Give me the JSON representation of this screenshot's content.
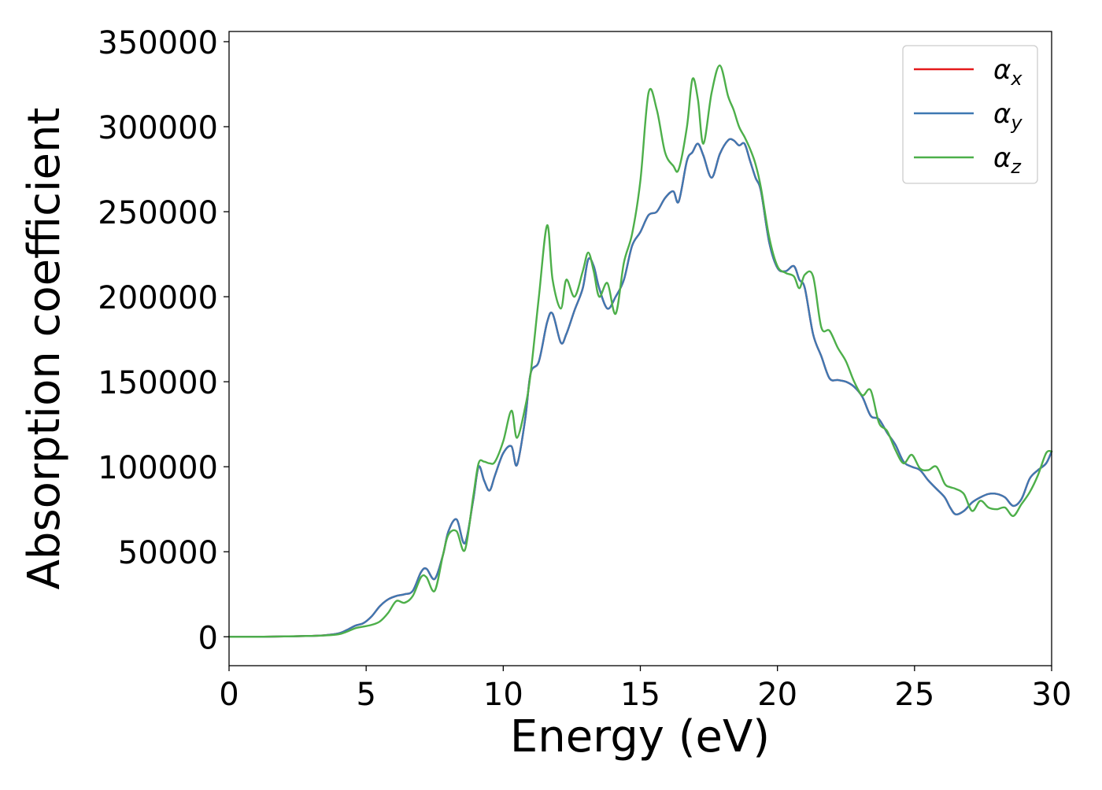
{
  "chart_data": {
    "type": "line",
    "xlabel": "Energy (eV)",
    "ylabel": "Absorption coefficient",
    "xlim": [
      0,
      30
    ],
    "ylim": [
      -17000,
      356000
    ],
    "x_ticks": [
      0,
      5,
      10,
      15,
      20,
      25,
      30
    ],
    "y_ticks": [
      0,
      50000,
      100000,
      150000,
      200000,
      250000,
      300000,
      350000
    ],
    "x_tick_labels": [
      "0",
      "5",
      "10",
      "15",
      "20",
      "25",
      "30"
    ],
    "y_tick_labels": [
      "0",
      "50000",
      "100000",
      "150000",
      "200000",
      "250000",
      "300000",
      "350000"
    ],
    "grid": false,
    "legend_position": "top-right",
    "series": [
      {
        "name": "αx",
        "legend_base": "α",
        "legend_sub": "x",
        "color": "#e41a1c",
        "x": [
          0,
          1,
          2,
          3,
          3.5,
          4,
          4.3,
          4.6,
          4.9,
          5.2,
          5.5,
          5.8,
          6.1,
          6.4,
          6.7,
          7.0,
          7.2,
          7.5,
          7.8,
          8.0,
          8.3,
          8.6,
          8.9,
          9.1,
          9.3,
          9.5,
          9.7,
          10.0,
          10.3,
          10.5,
          10.8,
          11.0,
          11.3,
          11.6,
          11.8,
          12.1,
          12.3,
          12.6,
          12.9,
          13.1,
          13.3,
          13.5,
          13.8,
          14.1,
          14.4,
          14.7,
          15.0,
          15.3,
          15.6,
          15.9,
          16.2,
          16.4,
          16.7,
          16.9,
          17.1,
          17.3,
          17.6,
          17.9,
          18.2,
          18.4,
          18.6,
          18.8,
          19.0,
          19.2,
          19.4,
          19.7,
          20.0,
          20.3,
          20.6,
          20.8,
          21.0,
          21.3,
          21.6,
          21.9,
          22.2,
          22.5,
          22.8,
          23.1,
          23.4,
          23.7,
          24.0,
          24.3,
          24.6,
          24.9,
          25.2,
          25.5,
          25.8,
          26.1,
          26.3,
          26.5,
          26.8,
          27.1,
          27.4,
          27.7,
          28.0,
          28.3,
          28.6,
          28.9,
          29.2,
          29.5,
          29.8,
          30.0
        ],
        "y": [
          0,
          0,
          200,
          500,
          900,
          2000,
          4000,
          6500,
          8000,
          12000,
          18000,
          22000,
          24000,
          25000,
          27000,
          38000,
          40000,
          34000,
          48000,
          62000,
          69000,
          55000,
          80000,
          100000,
          92000,
          86000,
          95000,
          108000,
          112000,
          101000,
          128000,
          155000,
          162000,
          185000,
          190000,
          173000,
          178000,
          192000,
          205000,
          222000,
          218000,
          205000,
          193000,
          200000,
          210000,
          230000,
          238000,
          248000,
          250000,
          258000,
          262000,
          256000,
          280000,
          285000,
          290000,
          283000,
          270000,
          284000,
          292000,
          292000,
          289000,
          290000,
          280000,
          270000,
          262000,
          232000,
          217000,
          215000,
          218000,
          210000,
          205000,
          178000,
          165000,
          152000,
          151000,
          150000,
          147000,
          141000,
          130000,
          128000,
          120000,
          113000,
          103000,
          100000,
          98000,
          92000,
          87000,
          82000,
          76000,
          72000,
          74000,
          79000,
          82000,
          84000,
          84000,
          82000,
          77000,
          81000,
          93000,
          98000,
          102000,
          109000
        ]
      },
      {
        "name": "αy",
        "legend_base": "α",
        "legend_sub": "y",
        "color": "#3e78b2",
        "x": [
          0,
          1,
          2,
          3,
          3.5,
          4,
          4.3,
          4.6,
          4.9,
          5.2,
          5.5,
          5.8,
          6.1,
          6.4,
          6.7,
          7.0,
          7.2,
          7.5,
          7.8,
          8.0,
          8.3,
          8.6,
          8.9,
          9.1,
          9.3,
          9.5,
          9.7,
          10.0,
          10.3,
          10.5,
          10.8,
          11.0,
          11.3,
          11.6,
          11.8,
          12.1,
          12.3,
          12.6,
          12.9,
          13.1,
          13.3,
          13.5,
          13.8,
          14.1,
          14.4,
          14.7,
          15.0,
          15.3,
          15.6,
          15.9,
          16.2,
          16.4,
          16.7,
          16.9,
          17.1,
          17.3,
          17.6,
          17.9,
          18.2,
          18.4,
          18.6,
          18.8,
          19.0,
          19.2,
          19.4,
          19.7,
          20.0,
          20.3,
          20.6,
          20.8,
          21.0,
          21.3,
          21.6,
          21.9,
          22.2,
          22.5,
          22.8,
          23.1,
          23.4,
          23.7,
          24.0,
          24.3,
          24.6,
          24.9,
          25.2,
          25.5,
          25.8,
          26.1,
          26.3,
          26.5,
          26.8,
          27.1,
          27.4,
          27.7,
          28.0,
          28.3,
          28.6,
          28.9,
          29.2,
          29.5,
          29.8,
          30.0
        ],
        "y": [
          0,
          0,
          200,
          500,
          900,
          2000,
          4000,
          6500,
          8000,
          12000,
          18000,
          22000,
          24000,
          25000,
          27000,
          38000,
          40000,
          34000,
          48000,
          62000,
          69000,
          55000,
          80000,
          100000,
          92000,
          86000,
          95000,
          108000,
          112000,
          101000,
          128000,
          155000,
          162000,
          185000,
          190000,
          173000,
          178000,
          192000,
          205000,
          222000,
          218000,
          205000,
          193000,
          200000,
          210000,
          230000,
          238000,
          248000,
          250000,
          258000,
          262000,
          256000,
          280000,
          285000,
          290000,
          283000,
          270000,
          284000,
          292000,
          292000,
          289000,
          290000,
          280000,
          270000,
          262000,
          232000,
          217000,
          215000,
          218000,
          210000,
          205000,
          178000,
          165000,
          152000,
          151000,
          150000,
          147000,
          141000,
          130000,
          128000,
          120000,
          113000,
          103000,
          100000,
          98000,
          92000,
          87000,
          82000,
          76000,
          72000,
          74000,
          79000,
          82000,
          84000,
          84000,
          82000,
          77000,
          81000,
          93000,
          98000,
          102000,
          109000
        ]
      },
      {
        "name": "αz",
        "legend_base": "α",
        "legend_sub": "z",
        "color": "#4daf4a",
        "x": [
          0,
          1,
          2,
          3,
          3.5,
          4,
          4.3,
          4.6,
          4.9,
          5.2,
          5.5,
          5.8,
          6.1,
          6.4,
          6.7,
          7.0,
          7.2,
          7.5,
          7.8,
          8.0,
          8.3,
          8.6,
          8.9,
          9.1,
          9.3,
          9.5,
          9.7,
          10.0,
          10.3,
          10.5,
          10.8,
          11.0,
          11.3,
          11.6,
          11.8,
          12.1,
          12.3,
          12.6,
          12.9,
          13.1,
          13.3,
          13.5,
          13.8,
          14.1,
          14.4,
          14.7,
          15.0,
          15.3,
          15.6,
          15.9,
          16.2,
          16.4,
          16.7,
          16.9,
          17.1,
          17.3,
          17.6,
          17.9,
          18.2,
          18.4,
          18.6,
          18.8,
          19.0,
          19.2,
          19.4,
          19.7,
          20.0,
          20.3,
          20.6,
          20.8,
          21.0,
          21.3,
          21.6,
          21.9,
          22.2,
          22.5,
          22.8,
          23.1,
          23.4,
          23.7,
          24.0,
          24.3,
          24.6,
          24.9,
          25.2,
          25.5,
          25.8,
          26.1,
          26.3,
          26.5,
          26.8,
          27.1,
          27.4,
          27.7,
          28.0,
          28.3,
          28.6,
          28.9,
          29.2,
          29.5,
          29.8,
          30.0
        ],
        "y": [
          0,
          0,
          200,
          500,
          800,
          1500,
          3000,
          5000,
          6000,
          7000,
          9000,
          14000,
          21000,
          20000,
          24000,
          35000,
          35000,
          27000,
          48000,
          60000,
          62000,
          51000,
          82000,
          102000,
          103000,
          102000,
          103000,
          115000,
          133000,
          117000,
          135000,
          155000,
          200000,
          242000,
          210000,
          193000,
          210000,
          200000,
          215000,
          226000,
          215000,
          200000,
          208000,
          190000,
          220000,
          237000,
          268000,
          320000,
          310000,
          285000,
          277000,
          275000,
          300000,
          328000,
          316000,
          290000,
          320000,
          336000,
          318000,
          310000,
          300000,
          294000,
          287000,
          278000,
          264000,
          235000,
          218000,
          214000,
          212000,
          205000,
          213000,
          212000,
          182000,
          180000,
          170000,
          162000,
          150000,
          142000,
          145000,
          126000,
          121000,
          110000,
          102000,
          107000,
          99000,
          98000,
          100000,
          90000,
          88000,
          87000,
          84000,
          74000,
          80000,
          76000,
          75000,
          76000,
          71000,
          78000,
          85000,
          95000,
          108000,
          109000
        ]
      }
    ]
  }
}
